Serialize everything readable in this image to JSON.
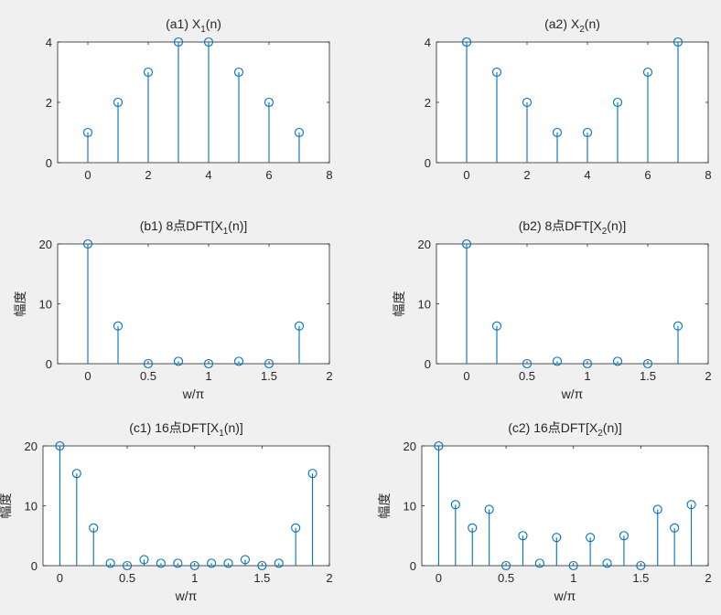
{
  "chart_data": [
    {
      "id": "a1",
      "type": "stem",
      "title": "(a1)  X",
      "title_sub": "1",
      "title_suffix": "(n)",
      "xlabel": "",
      "ylabel": "",
      "xlim": [
        -1,
        8
      ],
      "ylim": [
        0,
        4
      ],
      "xticks": [
        0,
        2,
        4,
        6,
        8
      ],
      "yticks": [
        0,
        2,
        4
      ],
      "x": [
        0,
        1,
        2,
        3,
        4,
        5,
        6,
        7
      ],
      "y": [
        1,
        2,
        3,
        4,
        4,
        3,
        2,
        1
      ],
      "color": "#0072bd",
      "grid": false
    },
    {
      "id": "a2",
      "type": "stem",
      "title": "(a2)  X",
      "title_sub": "2",
      "title_suffix": "(n)",
      "xlabel": "",
      "ylabel": "",
      "xlim": [
        -1,
        8
      ],
      "ylim": [
        0,
        4
      ],
      "xticks": [
        0,
        2,
        4,
        6,
        8
      ],
      "yticks": [
        0,
        2,
        4
      ],
      "x": [
        0,
        1,
        2,
        3,
        4,
        5,
        6,
        7
      ],
      "y": [
        4,
        3,
        2,
        1,
        1,
        2,
        3,
        4
      ],
      "color": "#0072bd",
      "grid": false
    },
    {
      "id": "b1",
      "type": "stem",
      "title": "(b1)  8点DFT[X",
      "title_sub": "1",
      "title_suffix": "(n)]",
      "xlabel": "w/π",
      "ylabel": "幅度",
      "xlim": [
        -0.25,
        2
      ],
      "ylim": [
        0,
        20
      ],
      "xticks": [
        0,
        0.5,
        1,
        1.5,
        2
      ],
      "yticks": [
        0,
        10,
        20
      ],
      "x": [
        0,
        0.25,
        0.5,
        0.75,
        1,
        1.25,
        1.5,
        1.75
      ],
      "y": [
        20,
        6.3,
        0,
        0.4,
        0,
        0.4,
        0,
        6.3
      ],
      "color": "#0072bd",
      "grid": false
    },
    {
      "id": "b2",
      "type": "stem",
      "title": "(b2)  8点DFT[X",
      "title_sub": "2",
      "title_suffix": "(n)]",
      "xlabel": "w/π",
      "ylabel": "幅度",
      "xlim": [
        -0.25,
        2
      ],
      "ylim": [
        0,
        20
      ],
      "xticks": [
        0,
        0.5,
        1,
        1.5,
        2
      ],
      "yticks": [
        0,
        10,
        20
      ],
      "x": [
        0,
        0.25,
        0.5,
        0.75,
        1,
        1.25,
        1.5,
        1.75
      ],
      "y": [
        20,
        6.3,
        0,
        0.4,
        0,
        0.4,
        0,
        6.3
      ],
      "color": "#0072bd",
      "grid": false
    },
    {
      "id": "c1",
      "type": "stem",
      "title": "(c1)  16点DFT[X",
      "title_sub": "1",
      "title_suffix": "(n)]",
      "xlabel": "w/π",
      "ylabel": "幅度",
      "xlim": [
        -0.125,
        2
      ],
      "ylim": [
        0,
        20
      ],
      "xticks": [
        0,
        0.5,
        1,
        1.5,
        2
      ],
      "yticks": [
        0,
        10,
        20
      ],
      "x": [
        0,
        0.125,
        0.25,
        0.375,
        0.5,
        0.625,
        0.75,
        0.875,
        1,
        1.125,
        1.25,
        1.375,
        1.5,
        1.625,
        1.75,
        1.875
      ],
      "y": [
        20,
        15.4,
        6.3,
        0.4,
        0,
        1.0,
        0.4,
        0.4,
        0,
        0.4,
        0.4,
        1.0,
        0,
        0.4,
        6.3,
        15.4
      ],
      "color": "#0072bd",
      "grid": false
    },
    {
      "id": "c2",
      "type": "stem",
      "title": "(c2)  16点DFT[X",
      "title_sub": "2",
      "title_suffix": "(n)]",
      "xlabel": "w/π",
      "ylabel": "幅度",
      "xlim": [
        -0.125,
        2
      ],
      "ylim": [
        0,
        20
      ],
      "xticks": [
        0,
        0.5,
        1,
        1.5,
        2
      ],
      "yticks": [
        0,
        10,
        20
      ],
      "x": [
        0,
        0.125,
        0.25,
        0.375,
        0.5,
        0.625,
        0.75,
        0.875,
        1,
        1.125,
        1.25,
        1.375,
        1.5,
        1.625,
        1.75,
        1.875
      ],
      "y": [
        20,
        10.2,
        6.3,
        9.4,
        0,
        5.0,
        0.4,
        4.7,
        0,
        4.7,
        0.4,
        5.0,
        0,
        9.4,
        6.3,
        10.2
      ],
      "color": "#0072bd",
      "grid": false
    }
  ]
}
